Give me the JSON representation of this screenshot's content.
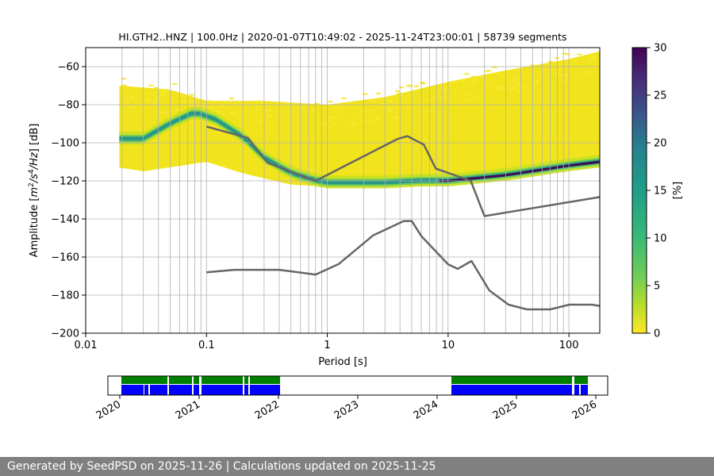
{
  "chart_data": [
    {
      "type": "heatmap",
      "title": "HI.GTH2..HNZ | 100.0Hz | 2020-01-07T10:49:02 - 2025-11-24T23:00:01 | 58739 segments",
      "xlabel": "Period [s]",
      "ylabel_parts": [
        "Amplitude [",
        "m",
        "2",
        "/",
        "s",
        "4",
        "/",
        "Hz",
        "] [dB]"
      ],
      "xscale": "log",
      "xlim": [
        0.01,
        180
      ],
      "ylim": [
        -200,
        -50
      ],
      "x_ticks": [
        0.01,
        0.1,
        1,
        10,
        100
      ],
      "x_tick_labels": [
        "0.01",
        "0.1",
        "1",
        "10",
        "100"
      ],
      "y_ticks": [
        -200,
        -180,
        -160,
        -140,
        -120,
        -100,
        -80,
        -60
      ],
      "y_tick_labels": [
        "−200",
        "−180",
        "−160",
        "−140",
        "−120",
        "−100",
        "−80",
        "−60"
      ],
      "grid": true,
      "density_band": {
        "description": "probability density of PSD values",
        "period_range": [
          0.019,
          180
        ],
        "mode_curve": [
          [
            0.019,
            -98
          ],
          [
            0.03,
            -98
          ],
          [
            0.05,
            -90
          ],
          [
            0.08,
            -84
          ],
          [
            0.12,
            -88
          ],
          [
            0.2,
            -97
          ],
          [
            0.3,
            -108
          ],
          [
            0.5,
            -116
          ],
          [
            0.8,
            -120
          ],
          [
            1,
            -121
          ],
          [
            3,
            -121
          ],
          [
            6,
            -120
          ],
          [
            10,
            -120
          ],
          [
            30,
            -117
          ],
          [
            100,
            -112
          ],
          [
            180,
            -110
          ]
        ],
        "upper_envelope": [
          [
            0.019,
            -70
          ],
          [
            0.05,
            -72
          ],
          [
            0.1,
            -78
          ],
          [
            0.3,
            -78
          ],
          [
            1,
            -80
          ],
          [
            3,
            -76
          ],
          [
            10,
            -68
          ],
          [
            30,
            -62
          ],
          [
            100,
            -56
          ],
          [
            180,
            -52
          ]
        ],
        "lower_envelope": [
          [
            0.019,
            -113
          ],
          [
            0.03,
            -115
          ],
          [
            0.1,
            -110
          ],
          [
            0.2,
            -116
          ],
          [
            0.5,
            -122
          ],
          [
            1,
            -123
          ],
          [
            3,
            -123
          ],
          [
            10,
            -122
          ],
          [
            30,
            -118
          ],
          [
            100,
            -113
          ],
          [
            180,
            -111
          ]
        ]
      },
      "colorbar": {
        "label": "[%]",
        "min": 0,
        "max": 30,
        "ticks": [
          0,
          5,
          10,
          15,
          20,
          25,
          30
        ],
        "tick_labels": [
          "0",
          "5",
          "10",
          "15",
          "20",
          "25",
          "30"
        ],
        "colormap": "viridis"
      },
      "series": [
        {
          "name": "NHNM",
          "color": "#666666",
          "points": [
            [
              0.1,
              -91.5
            ],
            [
              0.22,
              -97.4
            ],
            [
              0.32,
              -110.5
            ],
            [
              0.8,
              -120
            ],
            [
              3.8,
              -98
            ],
            [
              4.6,
              -96.5
            ],
            [
              6.3,
              -101
            ],
            [
              7.9,
              -113.5
            ],
            [
              15.4,
              -120
            ],
            [
              20,
              -138.5
            ],
            [
              180,
              -128.5
            ]
          ]
        },
        {
          "name": "NLNM",
          "color": "#666666",
          "points": [
            [
              0.1,
              -168
            ],
            [
              0.17,
              -166.7
            ],
            [
              0.4,
              -166.7
            ],
            [
              0.8,
              -169.2
            ],
            [
              1.24,
              -163.7
            ],
            [
              2.4,
              -148.6
            ],
            [
              4.3,
              -141.1
            ],
            [
              5,
              -141.1
            ],
            [
              6,
              -149
            ],
            [
              10,
              -163.8
            ],
            [
              12,
              -166.2
            ],
            [
              15.6,
              -162.1
            ],
            [
              21.9,
              -177.5
            ],
            [
              31.6,
              -185
            ],
            [
              45,
              -187.5
            ],
            [
              70,
              -187.5
            ],
            [
              101,
              -185
            ],
            [
              154,
              -185
            ],
            [
              180,
              -185.7
            ]
          ]
        }
      ]
    },
    {
      "type": "timeline",
      "x_ticks": [
        2020,
        2021,
        2022,
        2023,
        2024,
        2025,
        2026
      ],
      "x_tick_labels": [
        "2020",
        "2021",
        "2022",
        "2023",
        "2024",
        "2025",
        "2026"
      ],
      "xlim": [
        2019.85,
        2026.15
      ],
      "rows": [
        {
          "name": "data-available",
          "color": "#008000",
          "spans": [
            [
              2020.02,
              2020.6
            ],
            [
              2020.62,
              2020.91
            ],
            [
              2020.93,
              2021.0
            ],
            [
              2021.03,
              2021.55
            ],
            [
              2021.57,
              2021.62
            ],
            [
              2021.64,
              2022.02
            ],
            [
              2024.18,
              2025.7
            ],
            [
              2025.73,
              2025.9
            ]
          ]
        },
        {
          "name": "segments",
          "color": "#0000ff",
          "spans": [
            [
              2020.02,
              2020.3
            ],
            [
              2020.31,
              2020.36
            ],
            [
              2020.38,
              2020.6
            ],
            [
              2020.62,
              2020.91
            ],
            [
              2020.93,
              2021.0
            ],
            [
              2021.03,
              2021.55
            ],
            [
              2021.57,
              2021.62
            ],
            [
              2021.64,
              2022.02
            ],
            [
              2024.18,
              2025.7
            ],
            [
              2025.73,
              2025.79
            ],
            [
              2025.81,
              2025.9
            ]
          ]
        }
      ]
    }
  ],
  "footer": {
    "text": "Generated by SeedPSD on 2025-11-26 | Calculations updated on 2025-11-25"
  }
}
